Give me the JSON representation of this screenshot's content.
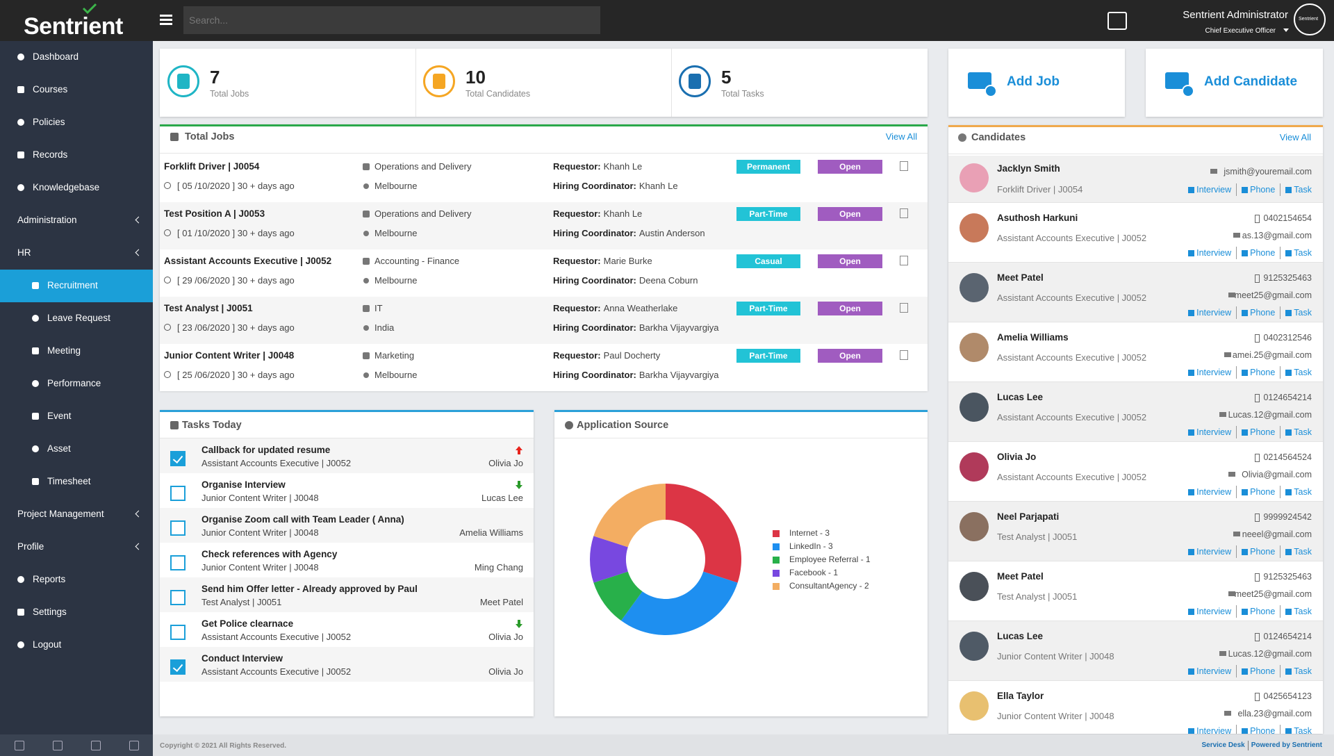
{
  "header": {
    "logo": "Sentrient",
    "search_placeholder": "Search...",
    "user_name": "Sentrient Administrator",
    "user_role": "Chief Executive Officer",
    "avatar_text": "Sentrient"
  },
  "sidebar": {
    "menu_top": [
      "Dashboard",
      "Courses",
      "Policies",
      "Records",
      "Knowledgebase",
      "Administration",
      "HR"
    ],
    "hr_submenu": [
      "Recruitment",
      "Leave Request",
      "Meeting",
      "Performance",
      "Event",
      "Asset",
      "Timesheet"
    ],
    "menu_bottom": [
      "Project Management",
      "Profile",
      "Reports",
      "Settings",
      "Logout"
    ]
  },
  "stats": [
    {
      "value": "7",
      "label": "Total Jobs"
    },
    {
      "value": "10",
      "label": "Total Candidates"
    },
    {
      "value": "5",
      "label": "Total Tasks"
    }
  ],
  "actions": [
    "Add Job",
    "Add Candidate"
  ],
  "jobs": {
    "title": "Total Jobs",
    "view_all": "View All",
    "requestor_label": "Requestor:",
    "coordinator_label": "Hiring Coordinator:",
    "rows": [
      {
        "title": "Forklift Driver | J0054",
        "date": "[ 05 /10/2020 ] 30 + days ago",
        "department": "Operations and Delivery",
        "location": "Melbourne",
        "requestor": "Khanh Le",
        "coordinator": "Khanh Le",
        "type": "Permanent",
        "status": "Open"
      },
      {
        "title": "Test Position A | J0053",
        "date": "[ 01 /10/2020 ] 30 + days ago",
        "department": "Operations and Delivery",
        "location": "Melbourne",
        "requestor": "Khanh Le",
        "coordinator": "Austin Anderson",
        "type": "Part-Time",
        "status": "Open"
      },
      {
        "title": "Assistant Accounts Executive | J0052",
        "date": "[ 29 /06/2020 ] 30 + days ago",
        "department": "Accounting - Finance",
        "location": "Melbourne",
        "requestor": "Marie Burke",
        "coordinator": "Deena Coburn",
        "type": "Casual",
        "status": "Open"
      },
      {
        "title": "Test Analyst | J0051",
        "date": "[ 23 /06/2020 ] 30 + days ago",
        "department": "IT",
        "location": "India",
        "requestor": "Anna Weatherlake",
        "coordinator": "Barkha Vijayvargiya",
        "type": "Part-Time",
        "status": "Open"
      },
      {
        "title": "Junior Content Writer | J0048",
        "date": "[ 25 /06/2020 ] 30 + days ago",
        "department": "Marketing",
        "location": "Melbourne",
        "requestor": "Paul Docherty",
        "coordinator": "Barkha Vijayvargiya",
        "type": "Part-Time",
        "status": "Open"
      }
    ]
  },
  "tasks": {
    "title": "Tasks Today",
    "items": [
      {
        "title": "Callback for updated resume",
        "subtitle": "Assistant Accounts Executive | J0052",
        "assignee": "Olivia Jo",
        "checked": true,
        "priority": "up"
      },
      {
        "title": "Organise Interview",
        "subtitle": "Junior Content Writer | J0048",
        "assignee": "Lucas Lee",
        "checked": false,
        "priority": "down"
      },
      {
        "title": "Organise Zoom call with Team Leader ( Anna)",
        "subtitle": "Junior Content Writer | J0048",
        "assignee": "Amelia Williams",
        "checked": false,
        "priority": null
      },
      {
        "title": "Check references with Agency",
        "subtitle": "Junior Content Writer | J0048",
        "assignee": "Ming Chang",
        "checked": false,
        "priority": null
      },
      {
        "title": "Send him Offer letter - Already approved by Paul",
        "subtitle": "Test Analyst | J0051",
        "assignee": "Meet Patel",
        "checked": false,
        "priority": null
      },
      {
        "title": "Get Police clearnace",
        "subtitle": "Assistant Accounts Executive | J0052",
        "assignee": "Olivia Jo",
        "checked": false,
        "priority": "down"
      },
      {
        "title": "Conduct Interview",
        "subtitle": "Assistant Accounts Executive | J0052",
        "assignee": "Olivia Jo",
        "checked": true,
        "priority": null
      }
    ]
  },
  "application_source": {
    "title": "Application Source",
    "chart_data": {
      "type": "pie",
      "donut": true,
      "labels": [
        "Internet - 3",
        "LinkedIn - 3",
        "Employee Referral - 1",
        "Facebook - 1",
        "ConsultantAgency - 2"
      ],
      "values": [
        3,
        3,
        1,
        1,
        2
      ],
      "colors": [
        "#dc3545",
        "#1e8ff0",
        "#28b04a",
        "#7848e0",
        "#f3ad62"
      ]
    }
  },
  "candidates": {
    "title": "Candidates",
    "view_all": "View All",
    "actions": [
      "Interview",
      "Phone",
      "Task"
    ],
    "items": [
      {
        "name": "Jacklyn Smith",
        "role": "Forklift Driver | J0054",
        "phone": null,
        "email": "jsmith@youremail.com"
      },
      {
        "name": "Asuthosh Harkuni",
        "role": "Assistant Accounts Executive | J0052",
        "phone": "0402154654",
        "email": "as.13@gmail.com"
      },
      {
        "name": "Meet Patel",
        "role": "Assistant Accounts Executive | J0052",
        "phone": "9125325463",
        "email": "meet25@gmail.com"
      },
      {
        "name": "Amelia Williams",
        "role": "Assistant Accounts Executive | J0052",
        "phone": "0402312546",
        "email": "amei.25@gmail.com"
      },
      {
        "name": "Lucas Lee",
        "role": "Assistant Accounts Executive | J0052",
        "phone": "0124654214",
        "email": "Lucas.12@gmail.com"
      },
      {
        "name": "Olivia Jo",
        "role": "Assistant Accounts Executive | J0052",
        "phone": "0214564524",
        "email": "Olivia@gmail.com"
      },
      {
        "name": "Neel Parjapati",
        "role": "Test Analyst | J0051",
        "phone": "9999924542",
        "email": "neeel@gmail.com"
      },
      {
        "name": "Meet Patel",
        "role": "Test Analyst | J0051",
        "phone": "9125325463",
        "email": "meet25@gmail.com"
      },
      {
        "name": "Lucas Lee",
        "role": "Junior Content Writer | J0048",
        "phone": "0124654214",
        "email": "Lucas.12@gmail.com"
      },
      {
        "name": "Ella Taylor",
        "role": "Junior Content Writer | J0048",
        "phone": "0425654123",
        "email": "ella.23@gmail.com"
      }
    ]
  },
  "footer": {
    "copyright": "Copyright © 2021 All Rights Reserved.",
    "links": [
      "Service Desk",
      "Powered by Sentrient"
    ]
  }
}
